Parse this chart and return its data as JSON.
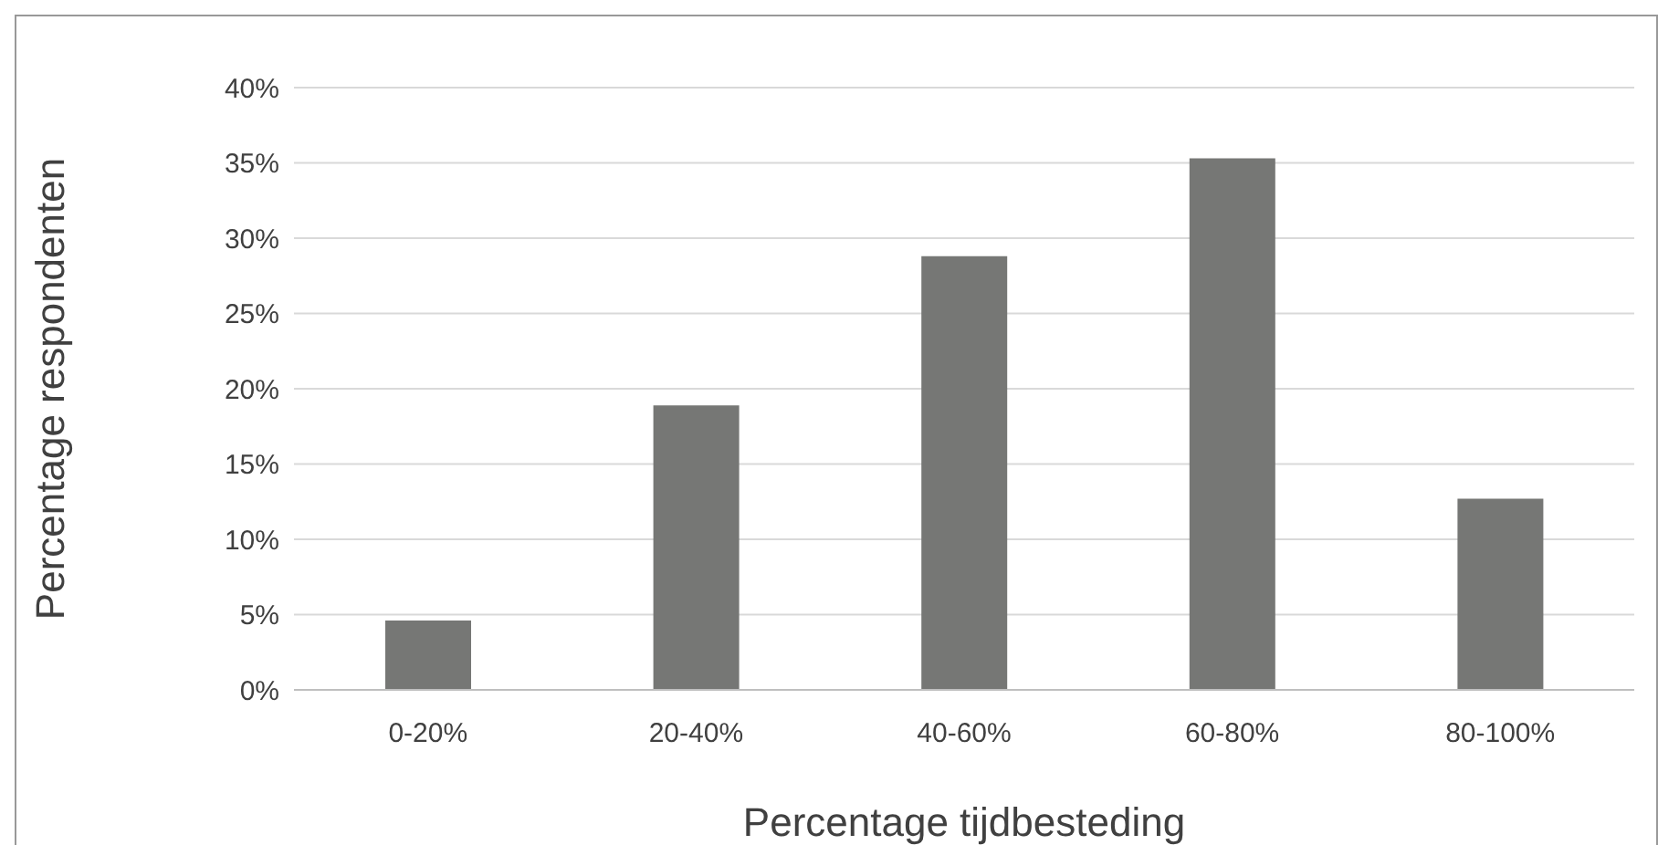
{
  "chart_data": {
    "type": "bar",
    "xlabel": "Percentage tijdbesteding",
    "ylabel": "Percentage respondenten",
    "categories": [
      "0-20%",
      "20-40%",
      "40-60%",
      "60-80%",
      "80-100%"
    ],
    "values": [
      4.6,
      18.9,
      28.8,
      35.3,
      12.7
    ],
    "color": "#767775",
    "ylim": [
      0,
      40
    ],
    "yticks": [
      {
        "value": 0,
        "label": "0%"
      },
      {
        "value": 5,
        "label": "5%"
      },
      {
        "value": 10,
        "label": "10%"
      },
      {
        "value": 15,
        "label": "15%"
      },
      {
        "value": 20,
        "label": "20%"
      },
      {
        "value": 25,
        "label": "25%"
      },
      {
        "value": 30,
        "label": "30%"
      },
      {
        "value": 35,
        "label": "35%"
      },
      {
        "value": 40,
        "label": "40%"
      }
    ],
    "grid": "y",
    "legend": false
  }
}
